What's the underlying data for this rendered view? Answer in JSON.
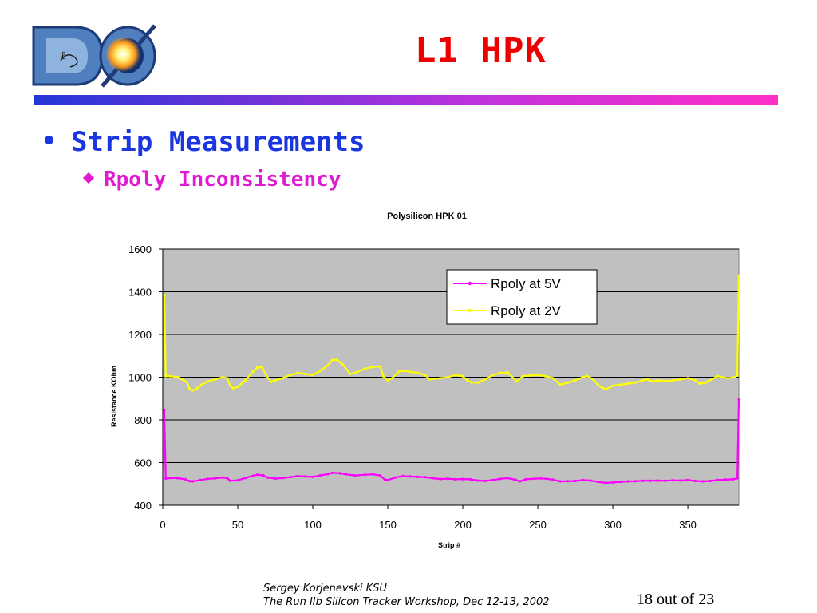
{
  "slide": {
    "title": "L1 HPK",
    "bullet1": "Strip Measurements",
    "bullet2": "Rpoly Inconsistency",
    "footer_line1": "Sergey Korjenevski KSU",
    "footer_line2": "The Run IIb Silicon Tracker Workshop,  Dec 12-13, 2002",
    "page": "18 out of 23",
    "logo_text": "DØ"
  },
  "colors": {
    "title": "#ee0000",
    "bullet1": "#1a36e0",
    "bullet2": "#e01ad0",
    "plot_bg": "#c0c0c0",
    "series_5v": "#ff00ff",
    "series_2v": "#ffff00"
  },
  "chart_data": {
    "type": "line",
    "title": "Polysilicon HPK 01",
    "xlabel": "Strip #",
    "ylabel": "Resistance KOhm",
    "xlim": [
      0,
      384
    ],
    "ylim": [
      400,
      1600
    ],
    "xticks": [
      0,
      50,
      100,
      150,
      200,
      250,
      300,
      350
    ],
    "yticks": [
      400,
      600,
      800,
      1000,
      1200,
      1400,
      1600
    ],
    "grid": "horizontal",
    "legend_position": "top-right",
    "series": [
      {
        "name": "Rpoly at 5V",
        "color": "#ff00ff",
        "points": [
          [
            1,
            845
          ],
          [
            2,
            525
          ],
          [
            5,
            528
          ],
          [
            10,
            527
          ],
          [
            15,
            522
          ],
          [
            18,
            513
          ],
          [
            20,
            512
          ],
          [
            25,
            518
          ],
          [
            30,
            524
          ],
          [
            35,
            526
          ],
          [
            40,
            530
          ],
          [
            43,
            527
          ],
          [
            45,
            515
          ],
          [
            50,
            517
          ],
          [
            55,
            528
          ],
          [
            60,
            538
          ],
          [
            63,
            543
          ],
          [
            67,
            540
          ],
          [
            70,
            530
          ],
          [
            75,
            525
          ],
          [
            80,
            528
          ],
          [
            85,
            532
          ],
          [
            90,
            537
          ],
          [
            95,
            535
          ],
          [
            100,
            533
          ],
          [
            105,
            540
          ],
          [
            110,
            546
          ],
          [
            113,
            552
          ],
          [
            118,
            550
          ],
          [
            122,
            545
          ],
          [
            128,
            540
          ],
          [
            135,
            543
          ],
          [
            140,
            545
          ],
          [
            145,
            540
          ],
          [
            148,
            520
          ],
          [
            150,
            518
          ],
          [
            155,
            530
          ],
          [
            160,
            537
          ],
          [
            165,
            535
          ],
          [
            170,
            533
          ],
          [
            175,
            532
          ],
          [
            180,
            527
          ],
          [
            185,
            523
          ],
          [
            190,
            525
          ],
          [
            195,
            522
          ],
          [
            200,
            523
          ],
          [
            205,
            522
          ],
          [
            210,
            516
          ],
          [
            215,
            514
          ],
          [
            220,
            518
          ],
          [
            225,
            524
          ],
          [
            230,
            527
          ],
          [
            235,
            520
          ],
          [
            238,
            512
          ],
          [
            242,
            522
          ],
          [
            248,
            525
          ],
          [
            252,
            526
          ],
          [
            256,
            524
          ],
          [
            260,
            520
          ],
          [
            265,
            512
          ],
          [
            270,
            513
          ],
          [
            275,
            514
          ],
          [
            280,
            518
          ],
          [
            285,
            516
          ],
          [
            290,
            510
          ],
          [
            295,
            505
          ],
          [
            300,
            507
          ],
          [
            305,
            510
          ],
          [
            310,
            512
          ],
          [
            315,
            513
          ],
          [
            320,
            515
          ],
          [
            325,
            515
          ],
          [
            330,
            516
          ],
          [
            335,
            515
          ],
          [
            340,
            517
          ],
          [
            345,
            516
          ],
          [
            350,
            518
          ],
          [
            355,
            514
          ],
          [
            360,
            512
          ],
          [
            365,
            514
          ],
          [
            370,
            518
          ],
          [
            375,
            520
          ],
          [
            380,
            522
          ],
          [
            383,
            527
          ],
          [
            384,
            895
          ]
        ]
      },
      {
        "name": "Rpoly at 2V",
        "color": "#ffff00",
        "points": [
          [
            1,
            1385
          ],
          [
            2,
            1005
          ],
          [
            5,
            1005
          ],
          [
            10,
            1000
          ],
          [
            13,
            990
          ],
          [
            16,
            978
          ],
          [
            18,
            945
          ],
          [
            20,
            938
          ],
          [
            23,
            948
          ],
          [
            26,
            965
          ],
          [
            30,
            980
          ],
          [
            35,
            990
          ],
          [
            40,
            1000
          ],
          [
            43,
            995
          ],
          [
            45,
            960
          ],
          [
            47,
            948
          ],
          [
            50,
            955
          ],
          [
            55,
            985
          ],
          [
            60,
            1025
          ],
          [
            63,
            1045
          ],
          [
            66,
            1048
          ],
          [
            69,
            1010
          ],
          [
            72,
            978
          ],
          [
            75,
            985
          ],
          [
            80,
            995
          ],
          [
            85,
            1010
          ],
          [
            90,
            1020
          ],
          [
            95,
            1015
          ],
          [
            100,
            1010
          ],
          [
            105,
            1030
          ],
          [
            110,
            1055
          ],
          [
            113,
            1080
          ],
          [
            116,
            1082
          ],
          [
            120,
            1060
          ],
          [
            125,
            1015
          ],
          [
            130,
            1025
          ],
          [
            135,
            1040
          ],
          [
            140,
            1048
          ],
          [
            145,
            1050
          ],
          [
            147,
            1005
          ],
          [
            150,
            985
          ],
          [
            153,
            995
          ],
          [
            157,
            1025
          ],
          [
            160,
            1030
          ],
          [
            165,
            1025
          ],
          [
            170,
            1020
          ],
          [
            175,
            1010
          ],
          [
            178,
            990
          ],
          [
            185,
            995
          ],
          [
            190,
            1000
          ],
          [
            195,
            1010
          ],
          [
            200,
            1005
          ],
          [
            203,
            985
          ],
          [
            206,
            975
          ],
          [
            210,
            975
          ],
          [
            215,
            990
          ],
          [
            220,
            1010
          ],
          [
            225,
            1020
          ],
          [
            230,
            1022
          ],
          [
            233,
            1000
          ],
          [
            236,
            980
          ],
          [
            240,
            1005
          ],
          [
            245,
            1008
          ],
          [
            250,
            1010
          ],
          [
            255,
            1005
          ],
          [
            260,
            995
          ],
          [
            265,
            965
          ],
          [
            270,
            975
          ],
          [
            275,
            985
          ],
          [
            280,
            1000
          ],
          [
            283,
            1005
          ],
          [
            287,
            990
          ],
          [
            290,
            965
          ],
          [
            293,
            950
          ],
          [
            296,
            945
          ],
          [
            300,
            960
          ],
          [
            305,
            965
          ],
          [
            310,
            970
          ],
          [
            315,
            975
          ],
          [
            320,
            985
          ],
          [
            323,
            990
          ],
          [
            326,
            980
          ],
          [
            330,
            985
          ],
          [
            335,
            982
          ],
          [
            340,
            985
          ],
          [
            345,
            990
          ],
          [
            350,
            995
          ],
          [
            355,
            985
          ],
          [
            358,
            970
          ],
          [
            362,
            975
          ],
          [
            366,
            990
          ],
          [
            370,
            1005
          ],
          [
            373,
            1000
          ],
          [
            377,
            995
          ],
          [
            381,
            1000
          ],
          [
            383,
            1008
          ],
          [
            384,
            1475
          ]
        ]
      }
    ]
  }
}
